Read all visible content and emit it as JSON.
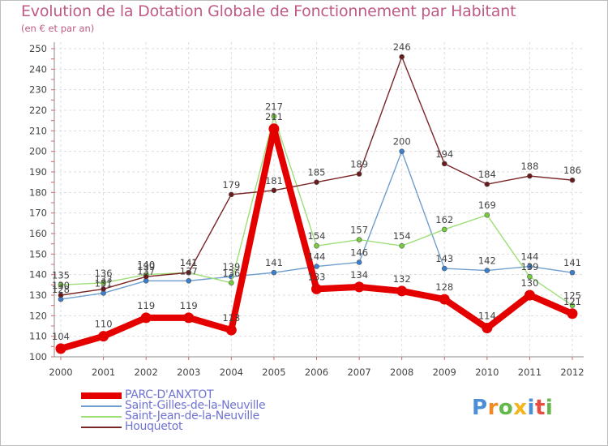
{
  "title": "Evolution de la Dotation Globale de Fonctionnement par Habitant",
  "subtitle": "(en € et par an)",
  "logo": {
    "text": "Proxiti",
    "letters": [
      "P",
      "r",
      "o",
      "x",
      "i",
      "t",
      "i"
    ]
  },
  "chart_data": {
    "type": "line",
    "x": [
      "2000",
      "2001",
      "2002",
      "2003",
      "2004",
      "2005",
      "2006",
      "2007",
      "2008",
      "2009",
      "2010",
      "2011",
      "2012"
    ],
    "yticks": [
      "100",
      "110",
      "120",
      "130",
      "140",
      "150",
      "160",
      "170",
      "180",
      "190",
      "200",
      "210",
      "220",
      "230",
      "240",
      "250"
    ],
    "ylim": [
      100,
      250
    ],
    "grid": true,
    "legend_position": "bottom-left",
    "series": [
      {
        "name": "PARC-D'ANXTOT",
        "color": "#e50000",
        "marker": "#e50000",
        "emphasis": true,
        "values": [
          104,
          110,
          119,
          119,
          113,
          211,
          133,
          134,
          132,
          128,
          114,
          130,
          121
        ]
      },
      {
        "name": "Saint-Gilles-de-la-Neuville",
        "color": "#6e9ed0",
        "marker": "#3a7fd0",
        "emphasis": false,
        "values": [
          128,
          131,
          137,
          137,
          139,
          141,
          144,
          146,
          200,
          143,
          142,
          144,
          141
        ]
      },
      {
        "name": "Saint-Jean-de-la-Neuville",
        "color": "#9fde78",
        "marker": "#75cc3c",
        "emphasis": false,
        "values": [
          135,
          136,
          140,
          141,
          136,
          217,
          154,
          157,
          154,
          162,
          169,
          139,
          125
        ]
      },
      {
        "name": "Houquetot",
        "color": "#7a2525",
        "marker": "#6a1a1a",
        "emphasis": false,
        "values": [
          130,
          133,
          139,
          141,
          179,
          181,
          185,
          189,
          246,
          194,
          184,
          188,
          186
        ]
      }
    ],
    "data_labels": [
      [
        "104",
        "110",
        "119",
        "119",
        "113",
        "211",
        "133",
        "134",
        "132",
        "128",
        "114",
        "130",
        "121"
      ],
      [
        "128",
        "131",
        "137",
        "137",
        "139",
        "141",
        "144",
        "146",
        "200",
        "143",
        "142",
        "144",
        "141"
      ],
      [
        "135",
        "136",
        "140",
        "141",
        "136",
        "217",
        "154",
        "157",
        "154",
        "162",
        "169",
        "139",
        "125"
      ],
      [
        "130",
        "133",
        "139",
        "141",
        "179",
        "181",
        "185",
        "189",
        "246",
        "194",
        "184",
        "188",
        "186"
      ]
    ]
  }
}
